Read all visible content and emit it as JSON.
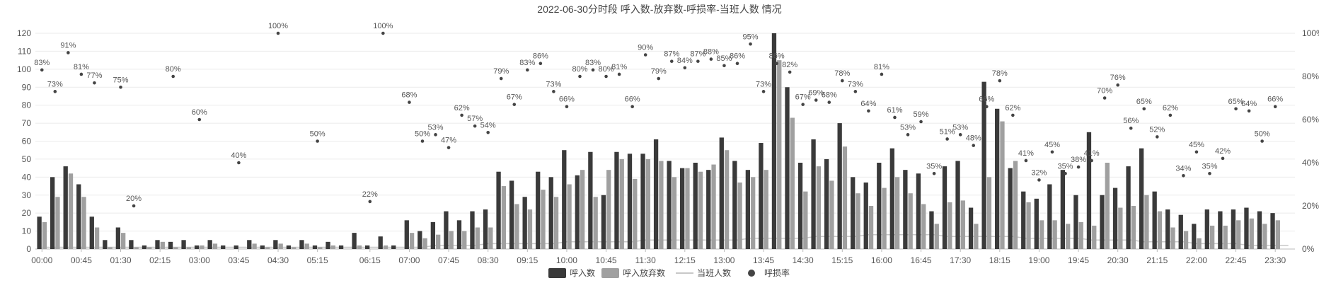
{
  "chart_data": {
    "type": "bar",
    "title": "2022-06-30分时段 呼入数-放弃数-呼损率-当班人数 情况",
    "categories": [
      "00:00",
      "00:15",
      "00:30",
      "00:45",
      "01:00",
      "01:15",
      "01:30",
      "01:45",
      "02:00",
      "02:15",
      "02:30",
      "02:45",
      "03:00",
      "03:15",
      "03:30",
      "03:45",
      "04:00",
      "04:15",
      "04:30",
      "04:45",
      "05:00",
      "05:15",
      "05:30",
      "05:45",
      "06:00",
      "06:15",
      "06:30",
      "06:45",
      "07:00",
      "07:15",
      "07:30",
      "07:45",
      "08:00",
      "08:15",
      "08:30",
      "08:45",
      "09:00",
      "09:15",
      "09:30",
      "09:45",
      "10:00",
      "10:15",
      "10:30",
      "10:45",
      "11:00",
      "11:15",
      "11:30",
      "11:45",
      "12:00",
      "12:15",
      "12:30",
      "12:45",
      "13:00",
      "13:15",
      "13:30",
      "13:45",
      "14:00",
      "14:15",
      "14:30",
      "14:45",
      "15:00",
      "15:15",
      "15:30",
      "15:45",
      "16:00",
      "16:15",
      "16:30",
      "16:45",
      "17:00",
      "17:15",
      "17:30",
      "17:45",
      "18:00",
      "18:15",
      "18:30",
      "18:45",
      "19:00",
      "19:15",
      "19:30",
      "19:45",
      "20:00",
      "20:15",
      "20:30",
      "20:45",
      "21:00",
      "21:15",
      "21:30",
      "21:45",
      "22:00",
      "22:15",
      "22:30",
      "22:45",
      "23:00",
      "23:15",
      "23:30",
      "23:45"
    ],
    "x_tick_labels": [
      "00:00",
      "00:45",
      "01:30",
      "02:15",
      "03:00",
      "03:45",
      "04:30",
      "05:15",
      "06:15",
      "07:00",
      "07:45",
      "08:30",
      "09:15",
      "10:00",
      "10:45",
      "11:30",
      "12:15",
      "13:00",
      "13:45",
      "14:30",
      "15:15",
      "16:00",
      "16:45",
      "17:30",
      "18:15",
      "19:00",
      "19:45",
      "20:30",
      "21:15",
      "22:00",
      "22:45",
      "23:30"
    ],
    "series": [
      {
        "name": "呼入数",
        "type": "bar",
        "color": "#3a3a3a",
        "values": [
          18,
          40,
          46,
          36,
          18,
          5,
          12,
          5,
          2,
          5,
          4,
          5,
          2,
          5,
          2,
          2,
          5,
          2,
          5,
          2,
          5,
          2,
          4,
          2,
          9,
          2,
          7,
          2,
          16,
          10,
          15,
          21,
          16,
          21,
          22,
          43,
          38,
          29,
          43,
          40,
          55,
          41,
          54,
          30,
          54,
          53,
          53,
          61,
          49,
          45,
          48,
          44,
          62,
          49,
          44,
          59,
          120,
          90,
          48,
          61,
          50,
          70,
          40,
          37,
          48,
          56,
          44,
          42,
          21,
          46,
          49,
          23,
          93,
          78,
          45,
          32,
          28,
          36,
          44,
          30,
          65,
          30,
          34,
          46,
          56,
          32,
          22,
          19,
          14,
          22,
          21,
          22,
          23,
          21,
          20,
          0
        ],
        "total_text": ""
      },
      {
        "name": "呼入放弃数",
        "type": "bar",
        "color": "#a0a0a0",
        "values": [
          15,
          29,
          42,
          29,
          12,
          1,
          9,
          1,
          1,
          4,
          1,
          1,
          2,
          3,
          0,
          0,
          3,
          1,
          3,
          1,
          3,
          1,
          2,
          0,
          2,
          0,
          2,
          0,
          9,
          6,
          8,
          10,
          10,
          12,
          12,
          35,
          25,
          22,
          33,
          29,
          36,
          44,
          29,
          44,
          50,
          39,
          50,
          49,
          40,
          45,
          43,
          47,
          55,
          37,
          40,
          44,
          105,
          73,
          32,
          46,
          38,
          57,
          31,
          24,
          34,
          40,
          31,
          25,
          14,
          26,
          27,
          14,
          40,
          71,
          49,
          26,
          16,
          16,
          14,
          15,
          13,
          48,
          23,
          24,
          30,
          21,
          12,
          10,
          6,
          13,
          13,
          16,
          17,
          14,
          16,
          0
        ]
      },
      {
        "name": "当班人数",
        "type": "line",
        "color": "#c8c8c8",
        "values": [
          1,
          1,
          1,
          1,
          1,
          1,
          1,
          1,
          1,
          1,
          1,
          1,
          1,
          1,
          1,
          1,
          1,
          1,
          1,
          1,
          1,
          1,
          1,
          1,
          1,
          1,
          1,
          1,
          1,
          1,
          2,
          2,
          2,
          2,
          3,
          3,
          3,
          3,
          3,
          3,
          4,
          4,
          4,
          4,
          4,
          4,
          5,
          5,
          5,
          5,
          5,
          5,
          5,
          5,
          6,
          6,
          6,
          6,
          6,
          7,
          7,
          7,
          7,
          8,
          8,
          8,
          8,
          8,
          8,
          7,
          7,
          7,
          7,
          7,
          7,
          6,
          6,
          6,
          6,
          6,
          5,
          5,
          5,
          5,
          4,
          4,
          4,
          4,
          3,
          3,
          3,
          3,
          2,
          2,
          2,
          2
        ]
      },
      {
        "name": "呼损率",
        "type": "scatter",
        "color": "#444444",
        "points": [
          {
            "x": "00:00",
            "y": 83
          },
          {
            "x": "00:15",
            "y": 73
          },
          {
            "x": "00:30",
            "y": 91
          },
          {
            "x": "00:45",
            "y": 81
          },
          {
            "x": "01:00",
            "y": 77
          },
          {
            "x": "01:30",
            "y": 75
          },
          {
            "x": "01:45",
            "y": 20
          },
          {
            "x": "02:30",
            "y": 80
          },
          {
            "x": "03:00",
            "y": 60
          },
          {
            "x": "03:45",
            "y": 40
          },
          {
            "x": "04:30",
            "y": 100
          },
          {
            "x": "05:15",
            "y": 50
          },
          {
            "x": "06:15",
            "y": 22
          },
          {
            "x": "06:30",
            "y": 100
          },
          {
            "x": "07:00",
            "y": 68
          },
          {
            "x": "07:15",
            "y": 50
          },
          {
            "x": "07:30",
            "y": 53
          },
          {
            "x": "07:45",
            "y": 47
          },
          {
            "x": "08:00",
            "y": 62
          },
          {
            "x": "08:15",
            "y": 57
          },
          {
            "x": "08:30",
            "y": 54
          },
          {
            "x": "08:45",
            "y": 79
          },
          {
            "x": "09:00",
            "y": 67
          },
          {
            "x": "09:15",
            "y": 83
          },
          {
            "x": "09:30",
            "y": 86
          },
          {
            "x": "09:45",
            "y": 73
          },
          {
            "x": "10:00",
            "y": 66
          },
          {
            "x": "10:15",
            "y": 80
          },
          {
            "x": "10:30",
            "y": 83
          },
          {
            "x": "10:45",
            "y": 80
          },
          {
            "x": "11:00",
            "y": 81
          },
          {
            "x": "11:15",
            "y": 66
          },
          {
            "x": "11:30",
            "y": 90
          },
          {
            "x": "11:45",
            "y": 79
          },
          {
            "x": "12:00",
            "y": 87
          },
          {
            "x": "12:15",
            "y": 84
          },
          {
            "x": "12:30",
            "y": 87
          },
          {
            "x": "12:45",
            "y": 88
          },
          {
            "x": "13:00",
            "y": 85
          },
          {
            "x": "13:15",
            "y": 86
          },
          {
            "x": "13:30",
            "y": 95
          },
          {
            "x": "13:45",
            "y": 73
          },
          {
            "x": "14:00",
            "y": 86
          },
          {
            "x": "14:15",
            "y": 82
          },
          {
            "x": "14:30",
            "y": 67
          },
          {
            "x": "14:45",
            "y": 69
          },
          {
            "x": "15:00",
            "y": 68
          },
          {
            "x": "15:15",
            "y": 78
          },
          {
            "x": "15:30",
            "y": 73
          },
          {
            "x": "15:45",
            "y": 64
          },
          {
            "x": "16:00",
            "y": 81
          },
          {
            "x": "16:15",
            "y": 61
          },
          {
            "x": "16:30",
            "y": 53
          },
          {
            "x": "16:45",
            "y": 59
          },
          {
            "x": "17:00",
            "y": 35
          },
          {
            "x": "17:15",
            "y": 51
          },
          {
            "x": "17:30",
            "y": 53
          },
          {
            "x": "17:45",
            "y": 48
          },
          {
            "x": "18:00",
            "y": 66
          },
          {
            "x": "18:15",
            "y": 78
          },
          {
            "x": "18:30",
            "y": 62
          },
          {
            "x": "18:45",
            "y": 41
          },
          {
            "x": "19:00",
            "y": 32
          },
          {
            "x": "19:15",
            "y": 45
          },
          {
            "x": "19:30",
            "y": 35
          },
          {
            "x": "19:45",
            "y": 38
          },
          {
            "x": "20:00",
            "y": 41
          },
          {
            "x": "20:15",
            "y": 70
          },
          {
            "x": "20:30",
            "y": 76
          },
          {
            "x": "20:45",
            "y": 56
          },
          {
            "x": "21:00",
            "y": 65
          },
          {
            "x": "21:15",
            "y": 52
          },
          {
            "x": "21:30",
            "y": 62
          },
          {
            "x": "21:45",
            "y": 34
          },
          {
            "x": "22:00",
            "y": 45
          },
          {
            "x": "22:15",
            "y": 35
          },
          {
            "x": "22:30",
            "y": 42
          },
          {
            "x": "22:45",
            "y": 65
          },
          {
            "x": "23:00",
            "y": 64
          },
          {
            "x": "23:15",
            "y": 50
          },
          {
            "x": "23:30",
            "y": 66
          }
        ]
      }
    ],
    "y_left": {
      "ylim": [
        0,
        120
      ],
      "ticks": [
        0,
        10,
        20,
        30,
        40,
        50,
        60,
        70,
        80,
        90,
        100,
        110,
        120
      ]
    },
    "y_right": {
      "ylim": [
        0,
        100
      ],
      "ticks": [
        "0%",
        "20%",
        "40%",
        "60%",
        "80%",
        "100%"
      ]
    },
    "legend": [
      "呼入数",
      "呼入放弃数",
      "当班人数",
      "呼损率"
    ],
    "legend_position": "bottom-center",
    "grid": true
  }
}
